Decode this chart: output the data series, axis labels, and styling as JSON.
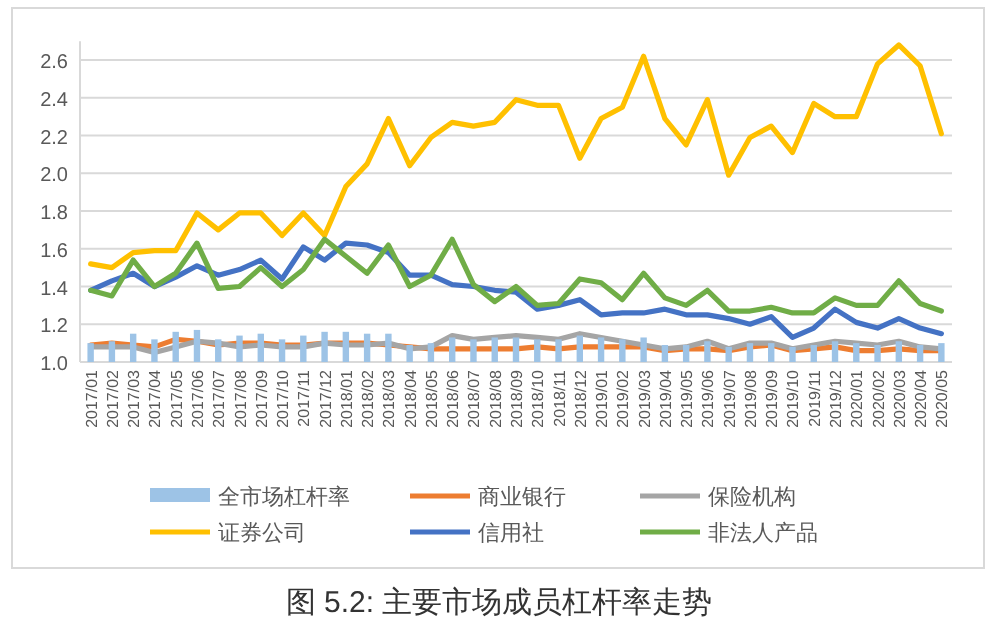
{
  "chart_data": {
    "type": "line",
    "title": "图 5.2: 主要市场成员杠杆率走势",
    "categories": [
      "2017/01",
      "2017/02",
      "2017/03",
      "2017/04",
      "2017/05",
      "2017/06",
      "2017/07",
      "2017/08",
      "2017/09",
      "2017/10",
      "2017/11",
      "2017/12",
      "2018/01",
      "2018/02",
      "2018/03",
      "2018/04",
      "2018/05",
      "2018/06",
      "2018/07",
      "2018/08",
      "2018/09",
      "2018/10",
      "2018/11",
      "2018/12",
      "2019/01",
      "2019/02",
      "2019/03",
      "2019/04",
      "2019/05",
      "2019/06",
      "2019/07",
      "2019/08",
      "2019/09",
      "2019/10",
      "2019/11",
      "2019/12",
      "2020/01",
      "2020/02",
      "2020/03",
      "2020/04",
      "2020/05"
    ],
    "ylim": [
      1.0,
      2.7
    ],
    "yticks": [
      {
        "value": 1.0,
        "label": "1.0"
      },
      1.2,
      1.4,
      1.6,
      1.8,
      {
        "value": 2.0,
        "label": "2.0"
      },
      2.2,
      2.4,
      2.6
    ],
    "grid": "y",
    "legend": "bottom",
    "series": [
      {
        "name": "全市场杠杆率",
        "type": "bar",
        "color": "#9dc3e6",
        "values": [
          1.1,
          1.11,
          1.15,
          1.12,
          1.16,
          1.17,
          1.12,
          1.14,
          1.15,
          1.12,
          1.14,
          1.16,
          1.16,
          1.15,
          1.15,
          1.09,
          1.1,
          1.13,
          1.12,
          1.13,
          1.13,
          1.12,
          1.12,
          1.14,
          1.13,
          1.12,
          1.13,
          1.09,
          1.09,
          1.11,
          1.08,
          1.1,
          1.1,
          1.08,
          1.09,
          1.11,
          1.1,
          1.09,
          1.11,
          1.09,
          1.1
        ]
      },
      {
        "name": "商业银行",
        "color": "#ed7d31",
        "values": [
          1.09,
          1.1,
          1.09,
          1.08,
          1.12,
          1.11,
          1.09,
          1.1,
          1.1,
          1.09,
          1.09,
          1.1,
          1.1,
          1.1,
          1.09,
          1.08,
          1.07,
          1.07,
          1.07,
          1.07,
          1.07,
          1.08,
          1.07,
          1.08,
          1.08,
          1.08,
          1.08,
          1.06,
          1.07,
          1.07,
          1.06,
          1.08,
          1.09,
          1.06,
          1.07,
          1.08,
          1.06,
          1.06,
          1.07,
          1.06,
          1.06
        ]
      },
      {
        "name": "保险机构",
        "color": "#a5a5a5",
        "values": [
          1.08,
          1.08,
          1.08,
          1.05,
          1.08,
          1.11,
          1.1,
          1.08,
          1.09,
          1.08,
          1.08,
          1.1,
          1.09,
          1.09,
          1.1,
          1.07,
          1.08,
          1.14,
          1.12,
          1.13,
          1.14,
          1.13,
          1.12,
          1.15,
          1.13,
          1.11,
          1.09,
          1.07,
          1.08,
          1.11,
          1.07,
          1.1,
          1.1,
          1.07,
          1.09,
          1.11,
          1.1,
          1.09,
          1.11,
          1.08,
          1.07
        ]
      },
      {
        "name": "证券公司",
        "color": "#ffc000",
        "values": [
          1.52,
          1.5,
          1.58,
          1.59,
          1.59,
          1.79,
          1.7,
          1.79,
          1.79,
          1.67,
          1.79,
          1.67,
          1.93,
          2.05,
          2.29,
          2.04,
          2.19,
          2.27,
          2.25,
          2.27,
          2.39,
          2.36,
          2.36,
          2.08,
          2.29,
          2.35,
          2.62,
          2.29,
          2.15,
          2.39,
          1.99,
          2.19,
          2.25,
          2.11,
          2.37,
          2.3,
          2.3,
          2.58,
          2.68,
          2.57,
          2.21
        ]
      },
      {
        "name": "信用社",
        "color": "#4472c4",
        "values": [
          1.38,
          1.43,
          1.47,
          1.4,
          1.45,
          1.51,
          1.46,
          1.49,
          1.54,
          1.44,
          1.61,
          1.54,
          1.63,
          1.62,
          1.58,
          1.46,
          1.46,
          1.41,
          1.4,
          1.38,
          1.37,
          1.28,
          1.3,
          1.33,
          1.25,
          1.26,
          1.26,
          1.28,
          1.25,
          1.25,
          1.23,
          1.2,
          1.24,
          1.13,
          1.18,
          1.28,
          1.21,
          1.18,
          1.23,
          1.18,
          1.15
        ]
      },
      {
        "name": "非法人产品",
        "color": "#70ad47",
        "values": [
          1.38,
          1.35,
          1.54,
          1.4,
          1.47,
          1.63,
          1.39,
          1.4,
          1.5,
          1.4,
          1.49,
          1.65,
          1.56,
          1.47,
          1.62,
          1.4,
          1.46,
          1.65,
          1.41,
          1.32,
          1.4,
          1.3,
          1.31,
          1.44,
          1.42,
          1.33,
          1.47,
          1.34,
          1.3,
          1.38,
          1.27,
          1.27,
          1.29,
          1.26,
          1.26,
          1.34,
          1.3,
          1.3,
          1.43,
          1.31,
          1.27
        ]
      }
    ]
  }
}
